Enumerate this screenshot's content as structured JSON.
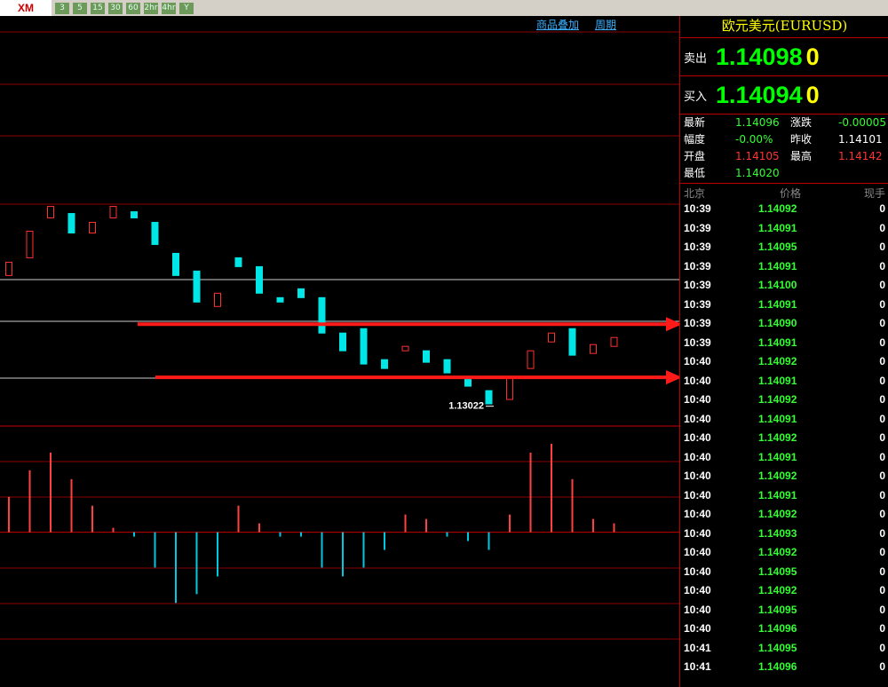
{
  "logo": "XM",
  "toolbar": {
    "buttons": [
      "3",
      "5",
      "15",
      "30",
      "60",
      "2hr",
      "4hr",
      "Y"
    ]
  },
  "chart_links": [
    "商品叠加",
    "周期"
  ],
  "chart_data": {
    "type": "candlestick",
    "candles": [
      [
        1.1374,
        1.13815
      ],
      [
        1.1384,
        1.1399
      ],
      [
        1.14065,
        1.1413
      ],
      [
        1.1409,
        1.1398
      ],
      [
        1.1398,
        1.1404
      ],
      [
        1.14065,
        1.1413
      ],
      [
        1.141,
        1.14065
      ],
      [
        1.1404,
        1.13915
      ],
      [
        1.13865,
        1.1374
      ],
      [
        1.13765,
        1.1359
      ],
      [
        1.13565,
        1.1364
      ],
      [
        1.1384,
        1.1379
      ],
      [
        1.1379,
        1.1364
      ],
      [
        1.13615,
        1.1359
      ],
      [
        1.13665,
        1.13615
      ],
      [
        1.13615,
        1.13415
      ],
      [
        1.13415,
        1.13315
      ],
      [
        1.1344,
        1.1324
      ],
      [
        1.13265,
        1.13215
      ],
      [
        1.13315,
        1.1334
      ],
      [
        1.13315,
        1.1325
      ],
      [
        1.13265,
        1.1319
      ],
      [
        1.13165,
        1.13115
      ],
      [
        1.1309,
        1.13015
      ],
      [
        1.1304,
        1.13165
      ],
      [
        1.13215,
        1.13315
      ],
      [
        1.13365,
        1.13415
      ],
      [
        1.1344,
        1.1329
      ],
      [
        1.133,
        1.1335
      ],
      [
        1.1334,
        1.1339
      ]
    ],
    "ylim": [
      1.129,
      1.15115
    ],
    "levels": [
      1.13465,
      1.13165
    ],
    "low_label": 1.13022,
    "macd": {
      "values": [
        40,
        70,
        90,
        60,
        30,
        5,
        -5,
        -40,
        -80,
        -70,
        -50,
        30,
        10,
        -5,
        -5,
        -40,
        -50,
        -40,
        -20,
        20,
        15,
        -5,
        -10,
        -20,
        20,
        90,
        100,
        60,
        15,
        10
      ],
      "ylim": [
        -175,
        120
      ]
    }
  },
  "quote": {
    "title": "欧元美元(EURUSD)",
    "sell": {
      "label": "卖出",
      "price": "1.14098",
      "tail": "0"
    },
    "buy": {
      "label": "买入",
      "price": "1.14094",
      "tail": "0"
    },
    "stats": [
      [
        "最新",
        "1.14096",
        "涨跌",
        "-0.00005"
      ],
      [
        "幅度",
        "-0.00%",
        "昨收",
        "1.14101"
      ],
      [
        "开盘",
        "1.14105",
        "最高",
        "1.14142"
      ],
      [
        "最低",
        "1.14020"
      ]
    ],
    "ticks_header": [
      "北京",
      "价格",
      "现手"
    ],
    "ticks": [
      [
        "10:39",
        "1.14092",
        "0"
      ],
      [
        "10:39",
        "1.14091",
        "0"
      ],
      [
        "10:39",
        "1.14095",
        "0"
      ],
      [
        "10:39",
        "1.14091",
        "0"
      ],
      [
        "10:39",
        "1.14100",
        "0"
      ],
      [
        "10:39",
        "1.14091",
        "0"
      ],
      [
        "10:39",
        "1.14090",
        "0"
      ],
      [
        "10:39",
        "1.14091",
        "0"
      ],
      [
        "10:40",
        "1.14092",
        "0"
      ],
      [
        "10:40",
        "1.14091",
        "0"
      ],
      [
        "10:40",
        "1.14092",
        "0"
      ],
      [
        "10:40",
        "1.14091",
        "0"
      ],
      [
        "10:40",
        "1.14092",
        "0"
      ],
      [
        "10:40",
        "1.14091",
        "0"
      ],
      [
        "10:40",
        "1.14092",
        "0"
      ],
      [
        "10:40",
        "1.14091",
        "0"
      ],
      [
        "10:40",
        "1.14092",
        "0"
      ],
      [
        "10:40",
        "1.14093",
        "0"
      ],
      [
        "10:40",
        "1.14092",
        "0"
      ],
      [
        "10:40",
        "1.14095",
        "0"
      ],
      [
        "10:40",
        "1.14092",
        "0"
      ],
      [
        "10:40",
        "1.14095",
        "0"
      ],
      [
        "10:40",
        "1.14096",
        "0"
      ],
      [
        "10:41",
        "1.14095",
        "0"
      ],
      [
        "10:41",
        "1.14096",
        "0"
      ]
    ]
  }
}
